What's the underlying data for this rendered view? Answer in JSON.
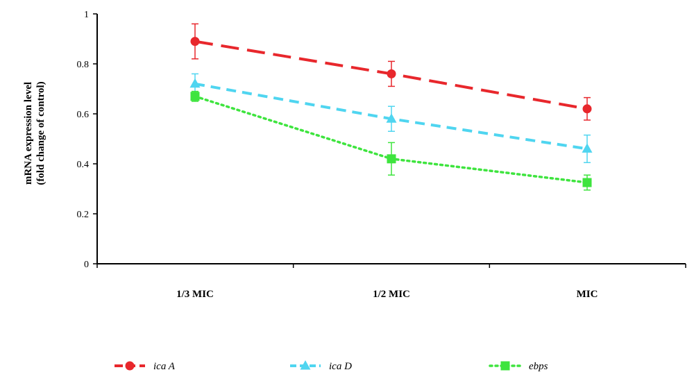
{
  "chart_data": {
    "type": "line",
    "categories": [
      "1/3 MIC",
      "1/2 MIC",
      "MIC"
    ],
    "ylabel_lines": [
      "mRNA expression level",
      "(fold change of control)"
    ],
    "xlabel": "",
    "ylim": [
      0,
      1
    ],
    "y_ticks": [
      "0",
      "0.2",
      "0.4",
      "0.6",
      "0.8",
      "1"
    ],
    "grid": false,
    "legend_position": "bottom",
    "series": [
      {
        "name": "ica A",
        "values": [
          0.89,
          0.76,
          0.62
        ],
        "errors": [
          0.07,
          0.05,
          0.045
        ],
        "color": "#e8272c",
        "marker": "circle",
        "dash": "long-dash"
      },
      {
        "name": "ica D",
        "values": [
          0.72,
          0.58,
          0.46
        ],
        "errors": [
          0.04,
          0.05,
          0.055
        ],
        "color": "#4fd5f0",
        "marker": "triangle",
        "dash": "dash"
      },
      {
        "name": "ebps",
        "values": [
          0.67,
          0.42,
          0.325
        ],
        "errors": [
          0.02,
          0.065,
          0.03
        ],
        "color": "#3ee43e",
        "marker": "square",
        "dash": "dot"
      }
    ]
  }
}
